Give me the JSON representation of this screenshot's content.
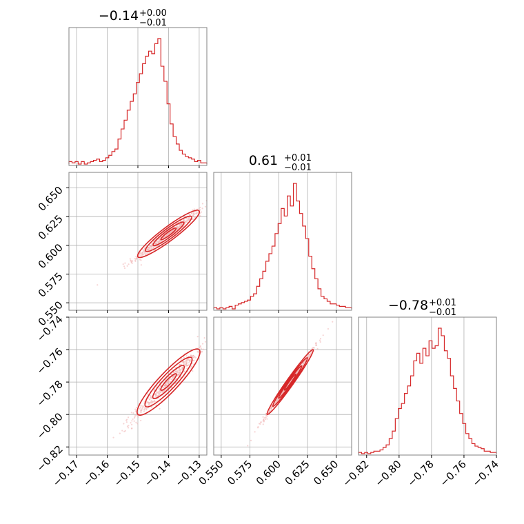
{
  "colors": {
    "line": "#d62728",
    "grid": "#b0b0b0",
    "frame": "#808080",
    "scatter": "#f0b3b3"
  },
  "chart_data": {
    "type": "corner",
    "parameters": [
      {
        "title_median": "−0.14",
        "title_plus": "+0.00",
        "title_minus": "−0.01",
        "median": -0.14,
        "err_plus": 0.0,
        "err_minus": 0.01,
        "range": [
          -0.1725,
          -0.1275
        ],
        "ticks": [
          -0.17,
          -0.16,
          -0.15,
          -0.14,
          -0.13
        ],
        "tick_labels": [
          "−0.17",
          "−0.16",
          "−0.15",
          "−0.14",
          "−0.13"
        ],
        "histogram": [
          0.02,
          0.01,
          0.02,
          0.0,
          0.02,
          0.0,
          0.01,
          0.02,
          0.03,
          0.04,
          0.02,
          0.03,
          0.05,
          0.07,
          0.1,
          0.12,
          0.2,
          0.28,
          0.35,
          0.43,
          0.5,
          0.56,
          0.65,
          0.72,
          0.8,
          0.86,
          0.9,
          0.88,
          0.96,
          1.0,
          0.78,
          0.66,
          0.48,
          0.32,
          0.22,
          0.16,
          0.11,
          0.08,
          0.06,
          0.05,
          0.04,
          0.02,
          0.03,
          0.01,
          0.01
        ]
      },
      {
        "title_median": "0.61",
        "title_plus": "+0.01",
        "title_minus": "−0.01",
        "median": 0.61,
        "err_plus": 0.01,
        "err_minus": 0.01,
        "range": [
          0.5435,
          0.6635
        ],
        "ticks": [
          0.55,
          0.575,
          0.6,
          0.625,
          0.65
        ],
        "tick_labels": [
          "0.550",
          "0.575",
          "0.600",
          "0.625",
          "0.650"
        ],
        "histogram": [
          0.01,
          0.0,
          0.01,
          0.0,
          0.01,
          0.02,
          0.0,
          0.03,
          0.04,
          0.05,
          0.06,
          0.07,
          0.1,
          0.12,
          0.18,
          0.24,
          0.3,
          0.38,
          0.44,
          0.5,
          0.6,
          0.68,
          0.8,
          0.74,
          0.9,
          0.82,
          1.0,
          0.86,
          0.76,
          0.66,
          0.56,
          0.42,
          0.32,
          0.24,
          0.16,
          0.1,
          0.08,
          0.06,
          0.04,
          0.04,
          0.03,
          0.02,
          0.02,
          0.01,
          0.01
        ]
      },
      {
        "title_median": "−0.78",
        "title_plus": "+0.01",
        "title_minus": "−0.01",
        "median": -0.78,
        "err_plus": 0.01,
        "err_minus": 0.01,
        "range": [
          -0.825,
          -0.74
        ],
        "ticks": [
          -0.82,
          -0.8,
          -0.78,
          -0.76,
          -0.74
        ],
        "tick_labels": [
          "−0.82",
          "−0.80",
          "−0.78",
          "−0.76",
          "−0.74"
        ],
        "histogram": [
          0.01,
          0.0,
          0.01,
          0.0,
          0.01,
          0.02,
          0.02,
          0.03,
          0.05,
          0.07,
          0.12,
          0.18,
          0.28,
          0.36,
          0.4,
          0.48,
          0.54,
          0.62,
          0.74,
          0.8,
          0.72,
          0.84,
          0.78,
          0.9,
          0.84,
          0.86,
          1.0,
          0.94,
          0.82,
          0.76,
          0.62,
          0.52,
          0.42,
          0.32,
          0.24,
          0.16,
          0.12,
          0.08,
          0.06,
          0.05,
          0.04,
          0.02,
          0.02,
          0.01,
          0.01
        ]
      }
    ],
    "pairs": [
      {
        "x_param": 0,
        "y_param": 1,
        "correlation": 0.98
      },
      {
        "x_param": 0,
        "y_param": 2,
        "correlation": 0.97
      },
      {
        "x_param": 1,
        "y_param": 2,
        "correlation": 0.995
      }
    ],
    "grid": true
  }
}
